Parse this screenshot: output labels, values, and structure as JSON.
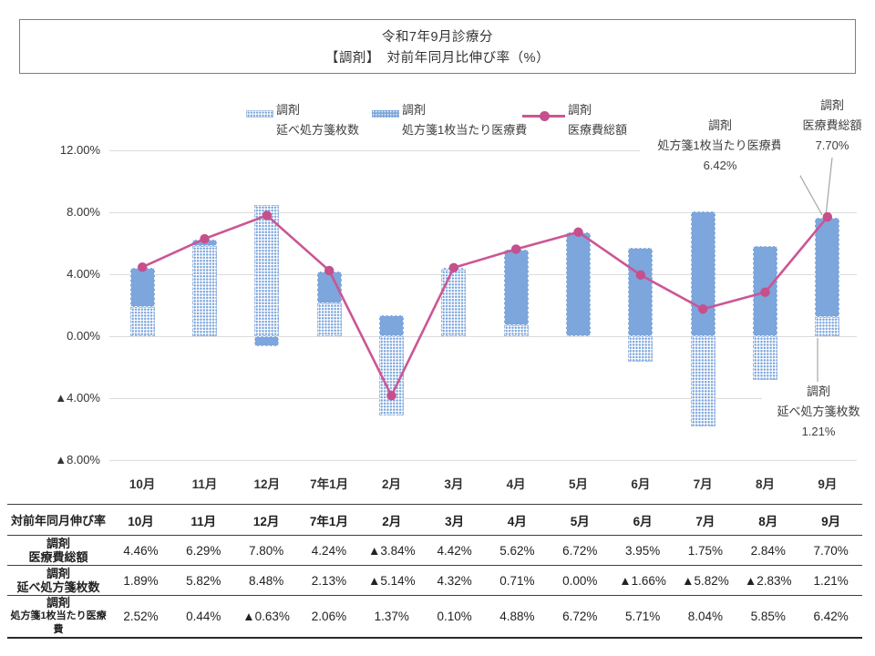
{
  "title": {
    "line1": "令和7年9月診療分",
    "line2": "【調剤】　対前年同月比伸び率（%）"
  },
  "colors": {
    "bar_solid": "#7CA6DC",
    "bar_pattern": "#7CA6DC",
    "line": "#CB5694",
    "marker": "#C5508C",
    "gridline": "#DCDCDC",
    "leader_line": "#A6A6A6",
    "table_border": "#404040",
    "text": "#333333"
  },
  "legend": [
    {
      "swatch": "pattern-bar",
      "label_line1": "調剤",
      "label_line2": "延べ処方箋枚数"
    },
    {
      "swatch": "dense-pattern-bar",
      "label_line1": "調剤",
      "label_line2": "処方箋1枚当たり医療費"
    },
    {
      "swatch": "line-marker",
      "label_line1": "調剤",
      "label_line2": "医療費総額"
    }
  ],
  "chart_data": {
    "type": "bar",
    "subtype": "stacked-bars-with-line-overlay",
    "categories": [
      "10月",
      "11月",
      "12月",
      "7年1月",
      "2月",
      "3月",
      "4月",
      "5月",
      "6月",
      "7月",
      "8月",
      "9月"
    ],
    "series": [
      {
        "name": "調剤 延べ処方箋枚数",
        "style": "bar-pattern",
        "values": [
          1.89,
          5.82,
          8.48,
          2.13,
          -5.14,
          4.32,
          0.71,
          0.0,
          -1.66,
          -5.82,
          -2.83,
          1.21
        ]
      },
      {
        "name": "調剤 処方箋1枚当たり医療費",
        "style": "bar-solid",
        "values": [
          2.52,
          0.44,
          -0.63,
          2.06,
          1.37,
          0.1,
          4.88,
          6.72,
          5.71,
          8.04,
          5.85,
          6.42
        ]
      },
      {
        "name": "調剤 医療費総額",
        "style": "line",
        "values": [
          4.46,
          6.29,
          7.8,
          4.24,
          -3.84,
          4.42,
          5.62,
          6.72,
          3.95,
          1.75,
          2.84,
          7.7
        ]
      }
    ],
    "ylim": [
      -8,
      12
    ],
    "yticks": [
      {
        "v": 12,
        "label": "12.00%"
      },
      {
        "v": 8,
        "label": "8.00%"
      },
      {
        "v": 4,
        "label": "4.00%"
      },
      {
        "v": 0,
        "label": "0.00%"
      },
      {
        "v": -4,
        "label": "▲4.00%"
      },
      {
        "v": -8,
        "label": "▲8.00%"
      }
    ],
    "grid": true,
    "legend_position": "top"
  },
  "annotations": [
    {
      "lines": [
        "調剤",
        "処方箋1枚当たり医療費",
        "6.42%"
      ]
    },
    {
      "lines": [
        "調剤",
        "医療費総額",
        "7.70%"
      ]
    },
    {
      "lines": [
        "調剤",
        "延べ処方箋枚数",
        "1.21%"
      ]
    }
  ],
  "table": {
    "corner_label": "対前年同月伸び率",
    "months": [
      "10月",
      "11月",
      "12月",
      "7年1月",
      "2月",
      "3月",
      "4月",
      "5月",
      "6月",
      "7月",
      "8月",
      "9月"
    ],
    "rows": [
      {
        "label_line1": "調剤",
        "label_line2": "医療費総額",
        "small_label": false,
        "values": [
          "4.46%",
          "6.29%",
          "7.80%",
          "4.24%",
          "▲3.84%",
          "4.42%",
          "5.62%",
          "6.72%",
          "3.95%",
          "1.75%",
          "2.84%",
          "7.70%"
        ]
      },
      {
        "label_line1": "調剤",
        "label_line2": "延べ処方箋枚数",
        "small_label": false,
        "values": [
          "1.89%",
          "5.82%",
          "8.48%",
          "2.13%",
          "▲5.14%",
          "4.32%",
          "0.71%",
          "0.00%",
          "▲1.66%",
          "▲5.82%",
          "▲2.83%",
          "1.21%"
        ]
      },
      {
        "label_line1": "調剤",
        "label_line2": "処方箋1枚当たり医療費",
        "small_label": true,
        "values": [
          "2.52%",
          "0.44%",
          "▲0.63%",
          "2.06%",
          "1.37%",
          "0.10%",
          "4.88%",
          "6.72%",
          "5.71%",
          "8.04%",
          "5.85%",
          "6.42%"
        ]
      }
    ]
  }
}
